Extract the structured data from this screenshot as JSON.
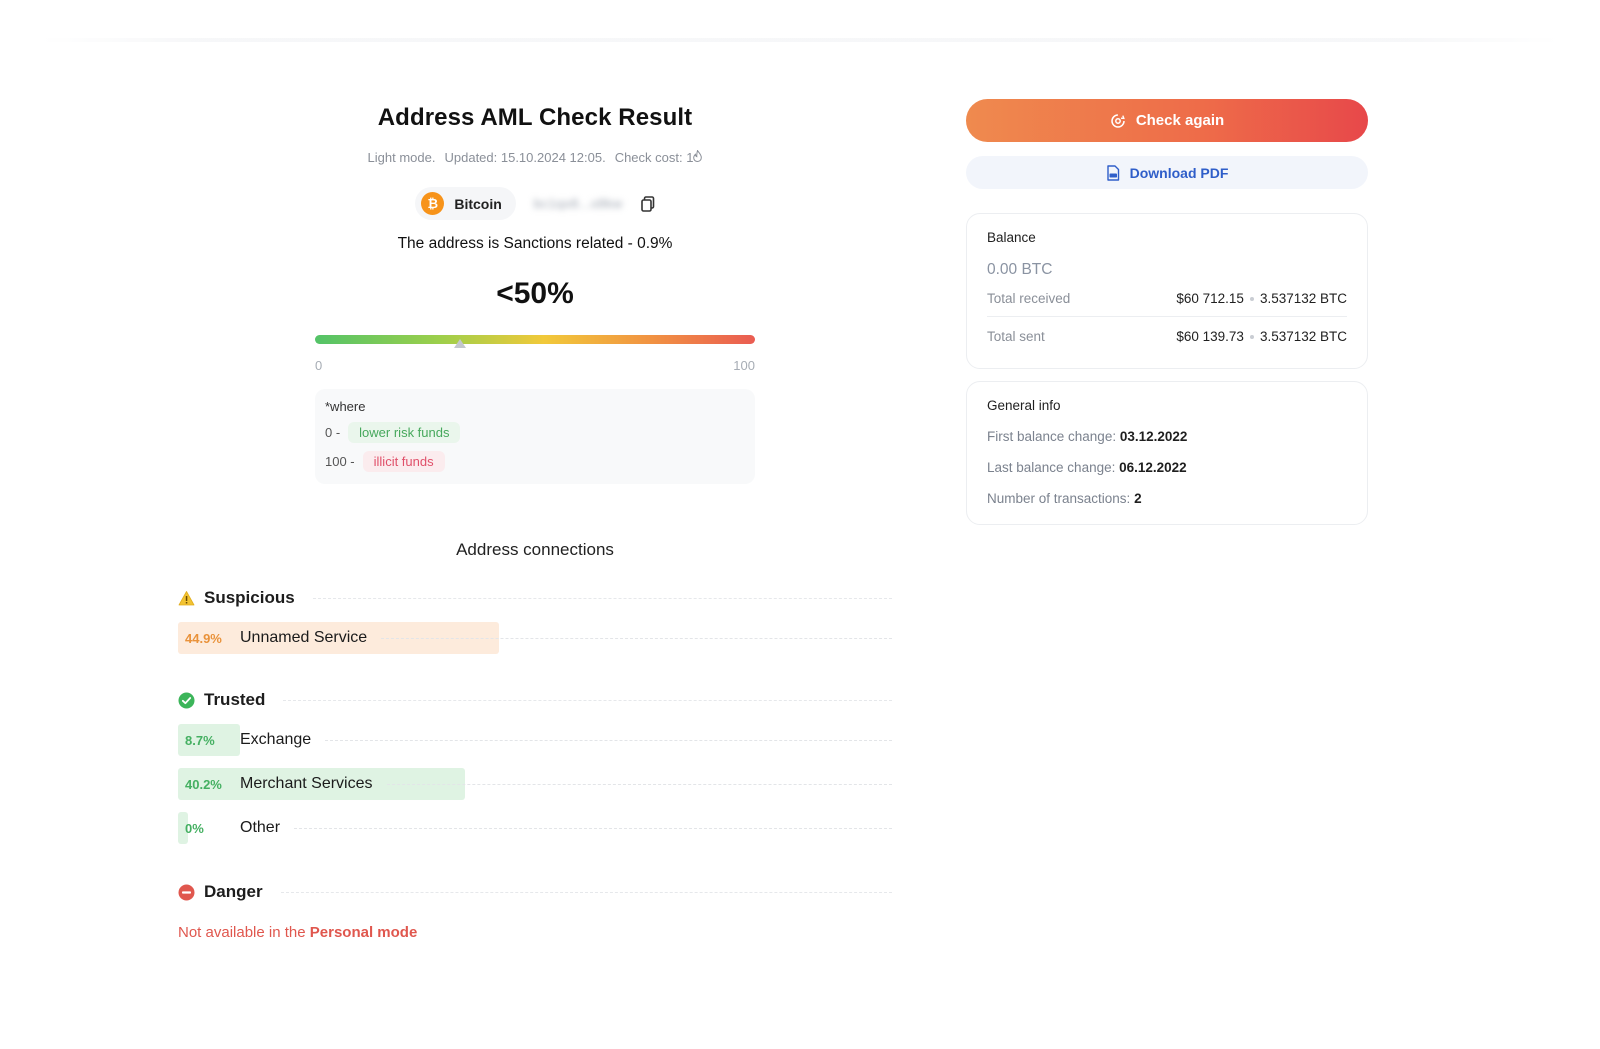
{
  "header": {
    "title": "Address AML Check Result",
    "mode": "Light mode.",
    "updated": "Updated: 15.10.2024 12:05.",
    "check_cost": "Check cost: 1"
  },
  "asset": {
    "coin_symbol": "₿",
    "coin_name": "Bitcoin",
    "address_masked": "bc1qx8...x8kw",
    "risk_statement": "The address is Sanctions related - 0.9%"
  },
  "score": {
    "label": "<50%",
    "marker_value": 33,
    "scale_min": "0",
    "scale_max": "100"
  },
  "legend": {
    "title": "*where",
    "low_value": "0 -",
    "low_label": "lower risk funds",
    "high_value": "100 -",
    "high_label": "illicit funds"
  },
  "connections": {
    "title": "Address connections",
    "suspicious": {
      "label": "Suspicious",
      "items": [
        {
          "pct": "44.9%",
          "name": "Unnamed Service",
          "value": 44.9
        }
      ]
    },
    "trusted": {
      "label": "Trusted",
      "items": [
        {
          "pct": "8.7%",
          "name": "Exchange",
          "value": 8.7
        },
        {
          "pct": "40.2%",
          "name": "Merchant Services",
          "value": 40.2
        },
        {
          "pct": "0%",
          "name": "Other",
          "value": 0
        }
      ]
    },
    "danger": {
      "label": "Danger",
      "note_prefix": "Not available in the",
      "note_strong": "Personal mode"
    }
  },
  "actions": {
    "check_again": "Check again",
    "download_pdf": "Download PDF"
  },
  "balance_card": {
    "title": "Balance",
    "balance": "0.00 BTC",
    "total_received_label": "Total received",
    "total_received_usd": "$60 712.15",
    "total_received_btc": "3.537132 BTC",
    "total_sent_label": "Total sent",
    "total_sent_usd": "$60 139.73",
    "total_sent_btc": "3.537132 BTC"
  },
  "general_info": {
    "title": "General info",
    "first_change_label": "First balance change:",
    "first_change": "03.12.2022",
    "last_change_label": "Last balance change:",
    "last_change": "06.12.2022",
    "tx_count_label": "Number of transactions:",
    "tx_count": "2"
  },
  "colors": {
    "accent_orange": "#ee6b49",
    "suspicious_fill": "#fdebdc",
    "suspicious_text": "#e9923a",
    "trusted_fill": "#dff3e3",
    "trusted_text": "#45b062",
    "danger": "#e0574e",
    "link_blue": "#2f5ec9"
  }
}
